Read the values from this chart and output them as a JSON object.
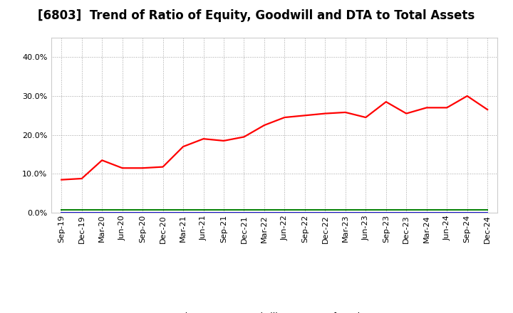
{
  "title": "[6803]  Trend of Ratio of Equity, Goodwill and DTA to Total Assets",
  "x_labels": [
    "Sep-19",
    "Dec-19",
    "Mar-20",
    "Jun-20",
    "Sep-20",
    "Dec-20",
    "Mar-21",
    "Jun-21",
    "Sep-21",
    "Dec-21",
    "Mar-22",
    "Jun-22",
    "Sep-22",
    "Dec-22",
    "Mar-23",
    "Jun-23",
    "Sep-23",
    "Dec-23",
    "Mar-24",
    "Jun-24",
    "Sep-24",
    "Dec-24"
  ],
  "equity": [
    8.5,
    8.8,
    13.5,
    11.5,
    11.5,
    11.8,
    17.0,
    19.0,
    18.5,
    19.5,
    22.5,
    24.5,
    25.0,
    25.5,
    25.8,
    24.5,
    28.5,
    25.5,
    27.0,
    27.0,
    30.0,
    26.5
  ],
  "goodwill": [
    0.05,
    0.05,
    0.05,
    0.05,
    0.05,
    0.05,
    0.05,
    0.05,
    0.05,
    0.05,
    0.05,
    0.05,
    0.05,
    0.05,
    0.05,
    0.05,
    0.05,
    0.05,
    0.05,
    0.05,
    0.05,
    0.05
  ],
  "deferred_tax": [
    0.7,
    0.7,
    0.7,
    0.7,
    0.7,
    0.7,
    0.7,
    0.7,
    0.7,
    0.7,
    0.7,
    0.7,
    0.7,
    0.7,
    0.7,
    0.7,
    0.7,
    0.7,
    0.7,
    0.7,
    0.7,
    0.7
  ],
  "equity_color": "#ff0000",
  "goodwill_color": "#0000cc",
  "dta_color": "#008000",
  "ylim": [
    0,
    45
  ],
  "yticks": [
    0.0,
    10.0,
    20.0,
    30.0,
    40.0
  ],
  "background_color": "#ffffff",
  "plot_bg_color": "#ffffff",
  "grid_color": "#999999",
  "title_fontsize": 12,
  "tick_fontsize": 8,
  "legend_fontsize": 9
}
